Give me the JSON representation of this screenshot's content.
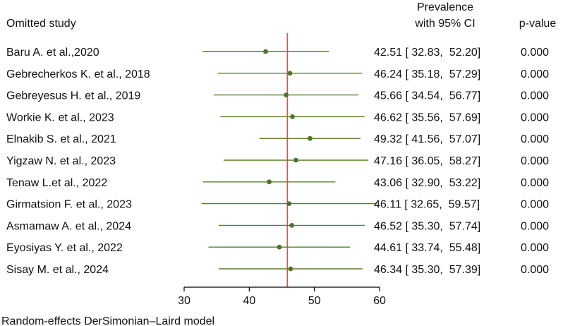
{
  "headers": {
    "study": "Omitted study",
    "prevalence_line1": "Prevalence",
    "prevalence_line2": "with 95% CI",
    "pvalue": "p-value"
  },
  "footer": "Random-effects DerSimonian–Laird model",
  "colors": {
    "ci_line": "#5a7f2c",
    "point": "#4f7428",
    "overall_line": "#d9534f",
    "axis": "#000000"
  },
  "chart_data": {
    "type": "forest",
    "xlim": [
      30,
      60
    ],
    "ticks": [
      30,
      40,
      50,
      60
    ],
    "tick_labels": [
      "30",
      "40",
      "50",
      "60"
    ],
    "overall_estimate": 45.85,
    "rows": [
      {
        "study": "Baru A. et al.,2020",
        "est": 42.51,
        "lo": 32.83,
        "hi": 52.2,
        "ci_text": "42.51 [ 32.83,  52.20]",
        "p": "0.000"
      },
      {
        "study": "Gebrecherkos K. et al., 2018",
        "est": 46.24,
        "lo": 35.18,
        "hi": 57.29,
        "ci_text": "46.24 [ 35.18,  57.29]",
        "p": "0.000"
      },
      {
        "study": "Gebreyesus H. et al., 2019",
        "est": 45.66,
        "lo": 34.54,
        "hi": 56.77,
        "ci_text": "45.66 [ 34.54,  56.77]",
        "p": "0.000"
      },
      {
        "study": "Workie K. et al., 2023",
        "est": 46.62,
        "lo": 35.56,
        "hi": 57.69,
        "ci_text": "46.62 [ 35.56,  57.69]",
        "p": "0.000"
      },
      {
        "study": "Elnakib S. et al., 2021",
        "est": 49.32,
        "lo": 41.56,
        "hi": 57.07,
        "ci_text": "49.32 [ 41.56,  57.07]",
        "p": "0.000"
      },
      {
        "study": "Yigzaw N. et al., 2023",
        "est": 47.16,
        "lo": 36.05,
        "hi": 58.27,
        "ci_text": "47.16 [ 36.05,  58.27]",
        "p": "0.000"
      },
      {
        "study": "Tenaw L.et al., 2022",
        "est": 43.06,
        "lo": 32.9,
        "hi": 53.22,
        "ci_text": "43.06 [ 32.90,  53.22]",
        "p": "0.000"
      },
      {
        "study": "Girmatsion F. et al., 2023",
        "est": 46.11,
        "lo": 32.65,
        "hi": 59.57,
        "ci_text": "46.11 [ 32.65,  59.57]",
        "p": "0.000"
      },
      {
        "study": "Asmamaw A. et al., 2024",
        "est": 46.52,
        "lo": 35.3,
        "hi": 57.74,
        "ci_text": "46.52 [ 35.30,  57.74]",
        "p": "0.000"
      },
      {
        "study": "Eyosiyas Y. et al., 2022",
        "est": 44.61,
        "lo": 33.74,
        "hi": 55.48,
        "ci_text": "44.61 [ 33.74,  55.48]",
        "p": "0.000"
      },
      {
        "study": "Sisay  M. et al., 2024",
        "est": 46.34,
        "lo": 35.3,
        "hi": 57.39,
        "ci_text": "46.34 [ 35.30,  57.39]",
        "p": "0.000"
      }
    ]
  }
}
